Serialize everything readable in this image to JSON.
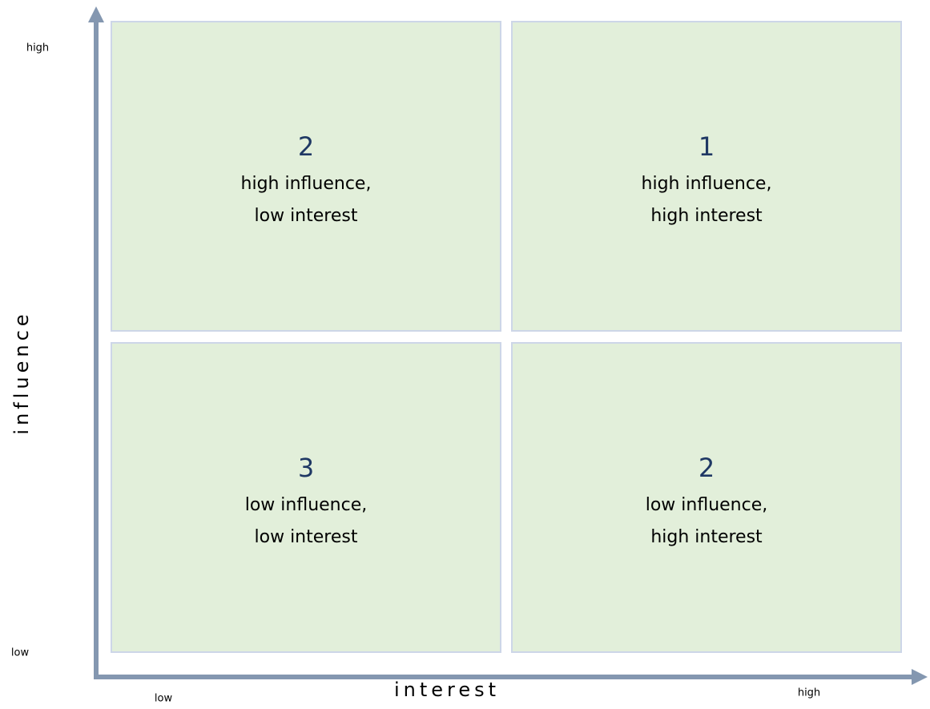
{
  "axes": {
    "y_label": "influence",
    "x_label": "interest",
    "y_high": "high",
    "y_low": "low",
    "x_low": "low",
    "x_high": "high"
  },
  "quadrants": [
    {
      "number": 2,
      "lines": [
        "high influence,",
        "low interest"
      ]
    },
    {
      "number": 1,
      "lines": [
        "high influence,",
        "high interest"
      ]
    },
    {
      "number": 3,
      "lines": [
        "low influence,",
        "low interest"
      ]
    },
    {
      "number": 2,
      "lines": [
        "low influence,",
        "high interest"
      ]
    }
  ]
}
